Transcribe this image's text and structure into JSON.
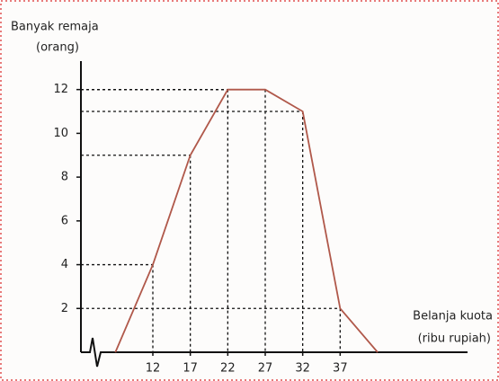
{
  "chart_data": {
    "type": "line",
    "y_label": [
      "Banyak remaja",
      "(orang)"
    ],
    "x_label": [
      "Belanja kuota",
      "(ribu rupiah)"
    ],
    "x": [
      7,
      12,
      17,
      22,
      27,
      32,
      37,
      42
    ],
    "series": [
      {
        "color": "#b0584a",
        "values": [
          0,
          4,
          9,
          12,
          12,
          11,
          2,
          0
        ]
      }
    ],
    "xlim": [
      6,
      54
    ],
    "xticks": [
      12,
      17,
      22,
      27,
      32,
      37
    ],
    "ylim": [
      0,
      13.3
    ],
    "yticks": [
      2,
      4,
      6,
      8,
      10,
      12
    ],
    "guide_lines": true
  }
}
